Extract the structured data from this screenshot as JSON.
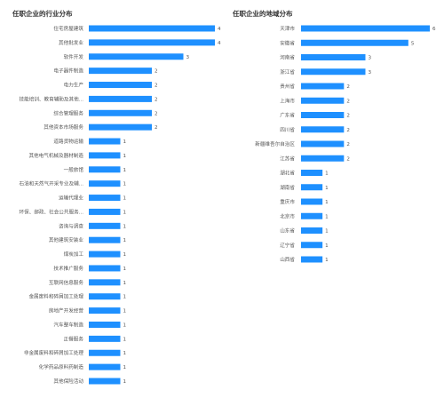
{
  "bar_color": "#1e90ff",
  "chart_data": [
    {
      "type": "bar",
      "orientation": "horizontal",
      "title": "任职企业的行业分布",
      "categories": [
        "住宅房屋建筑",
        "其他批发业",
        "软件开发",
        "电子器件制造",
        "电力生产",
        "技能培训、教育辅助及其他...",
        "综合管理服务",
        "其他资本市场服务",
        "道路货物运输",
        "其他电气机械及器材制造",
        "一般旅馆",
        "石油和天然气开采专业及辅...",
        "运输代理业",
        "环保、邮政、社会公共服务...",
        "咨询与调查",
        "其他建筑安装业",
        "煤炭加工",
        "技术推广服务",
        "互联网信息服务",
        "金属废料和碎屑加工处理",
        "房地产开发经营",
        "汽车整车制造",
        "正餐服务",
        "非金属废料和碎屑加工处理",
        "化学药品原料药制造",
        "其他保险活动"
      ],
      "values": [
        4,
        4,
        3,
        2,
        2,
        2,
        2,
        2,
        1,
        1,
        1,
        1,
        1,
        1,
        1,
        1,
        1,
        1,
        1,
        1,
        1,
        1,
        1,
        1,
        1,
        1
      ]
    },
    {
      "type": "bar",
      "orientation": "horizontal",
      "title": "任职企业的地域分布",
      "categories": [
        "天津市",
        "安徽省",
        "河南省",
        "浙江省",
        "贵州省",
        "上海市",
        "广东省",
        "四川省",
        "新疆维吾尔自治区",
        "江苏省",
        "湖北省",
        "湖南省",
        "重庆市",
        "北京市",
        "山东省",
        "辽宁省",
        "山西省"
      ],
      "values": [
        6,
        5,
        3,
        3,
        2,
        2,
        2,
        2,
        2,
        2,
        1,
        1,
        1,
        1,
        1,
        1,
        1
      ]
    }
  ]
}
